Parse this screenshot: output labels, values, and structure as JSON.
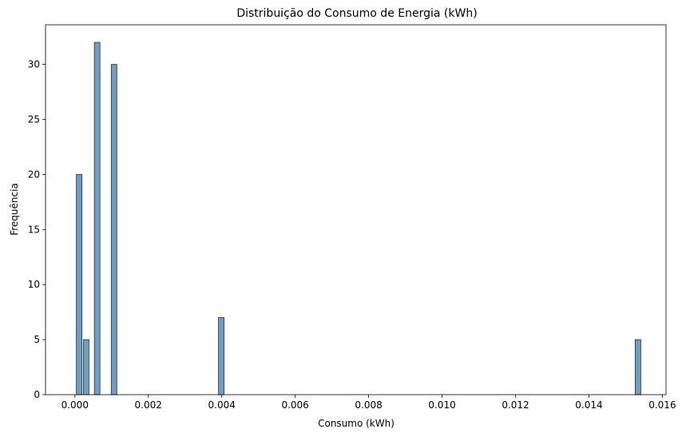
{
  "chart_data": {
    "type": "bar",
    "title": "Distribuição do Consumo de Energia (kWh)",
    "xlabel": "Consumo (kWh)",
    "ylabel": "Frequência",
    "xlim": [
      -0.0008,
      0.0161
    ],
    "ylim": [
      0,
      33.6
    ],
    "xticks": [
      "0.000",
      "0.002",
      "0.004",
      "0.006",
      "0.008",
      "0.010",
      "0.012",
      "0.014",
      "0.016"
    ],
    "yticks": [
      "0",
      "5",
      "10",
      "15",
      "20",
      "25",
      "30"
    ],
    "bin_width": 0.000152,
    "grid": false,
    "bars": [
      {
        "x": 4e-05,
        "count": 20
      },
      {
        "x": 0.00023,
        "count": 5
      },
      {
        "x": 0.00053,
        "count": 32
      },
      {
        "x": 0.00099,
        "count": 30
      },
      {
        "x": 0.00391,
        "count": 7
      },
      {
        "x": 0.01526,
        "count": 5
      }
    ]
  }
}
